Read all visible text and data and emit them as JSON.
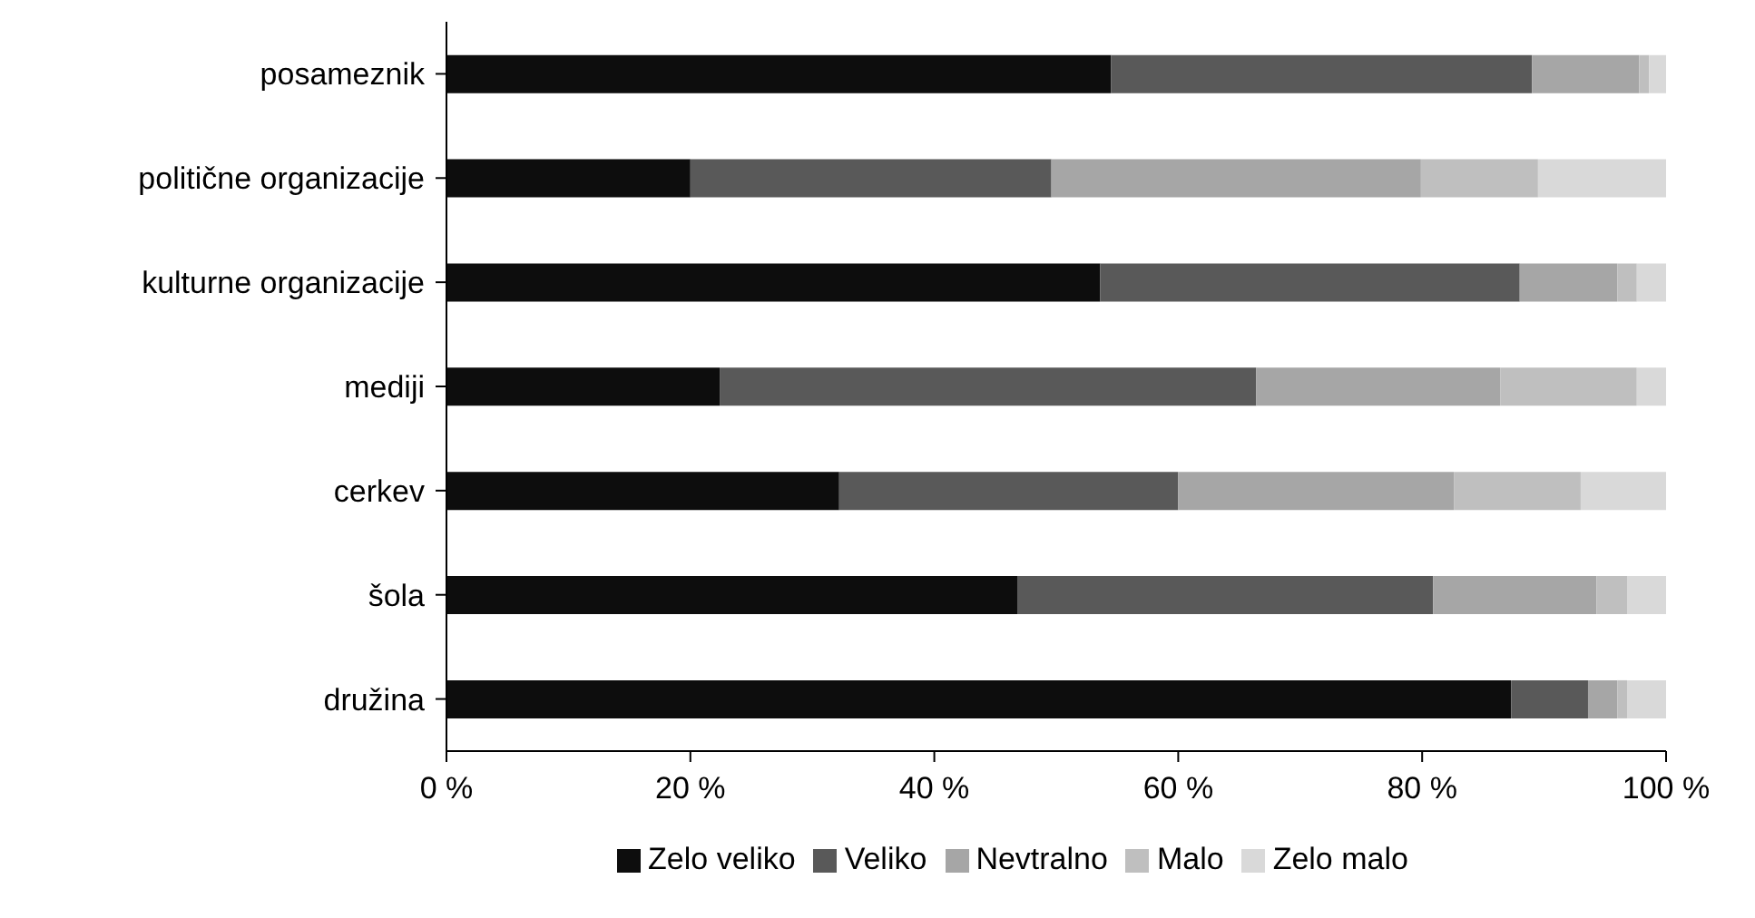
{
  "chart_data": {
    "type": "bar",
    "orientation": "horizontal",
    "stacked": true,
    "categories": [
      "posameznik",
      "politične organizacije",
      "kulturne organizacije",
      "mediji",
      "cerkev",
      "šola",
      "družina"
    ],
    "series": [
      {
        "name": "Zelo veliko",
        "color": "#0d0d0d",
        "values": [
          54.5,
          20.0,
          53.6,
          22.4,
          32.2,
          46.8,
          87.3
        ]
      },
      {
        "name": "Veliko",
        "color": "#595959",
        "values": [
          34.5,
          29.6,
          34.4,
          44.0,
          27.8,
          34.1,
          6.3
        ]
      },
      {
        "name": "Nevtralno",
        "color": "#a6a6a6",
        "values": [
          8.8,
          30.3,
          8.0,
          20.0,
          22.6,
          13.4,
          2.4
        ]
      },
      {
        "name": "Malo",
        "color": "#bfbfbf",
        "values": [
          0.8,
          9.6,
          1.6,
          11.2,
          10.4,
          2.5,
          0.8
        ]
      },
      {
        "name": "Zelo malo",
        "color": "#d9d9d9",
        "values": [
          1.4,
          10.5,
          2.4,
          2.4,
          7.0,
          3.2,
          3.2
        ]
      }
    ],
    "xlim": [
      0,
      100
    ],
    "xticks": [
      {
        "value": 0,
        "label": "0 %"
      },
      {
        "value": 20,
        "label": "20 %"
      },
      {
        "value": 40,
        "label": "40 %"
      },
      {
        "value": 60,
        "label": "60 %"
      },
      {
        "value": 80,
        "label": "80 %"
      },
      {
        "value": 100,
        "label": "100 %"
      }
    ],
    "grid": false,
    "legend": "bottom"
  }
}
